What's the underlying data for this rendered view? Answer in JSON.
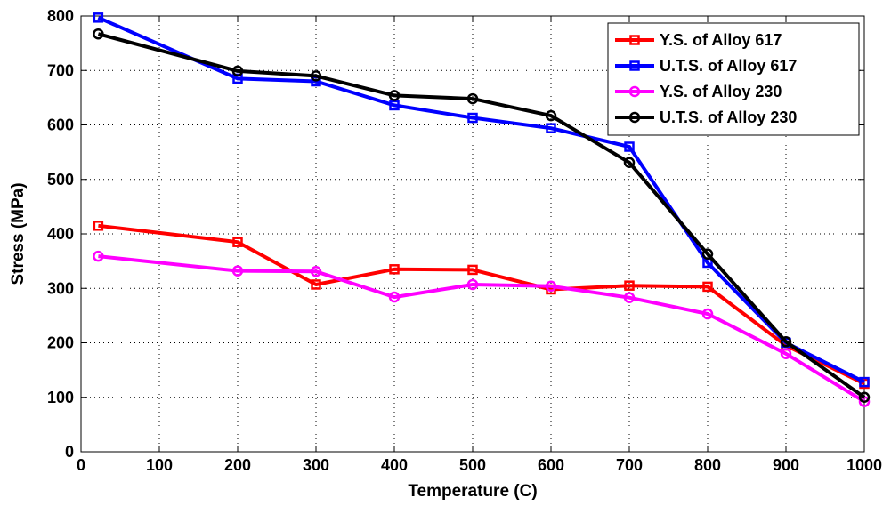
{
  "chart_data": {
    "type": "line",
    "xlabel": "Temperature (C)",
    "ylabel": "Stress (MPa)",
    "xlim": [
      0,
      1000
    ],
    "ylim": [
      0,
      800
    ],
    "x_ticks": [
      0,
      100,
      200,
      300,
      400,
      500,
      600,
      700,
      800,
      900,
      1000
    ],
    "y_ticks": [
      0,
      100,
      200,
      300,
      400,
      500,
      600,
      700,
      800
    ],
    "grid": true,
    "legend_position": "top-right",
    "series": [
      {
        "name": "Y.S. of Alloy 617",
        "color": "#ff0000",
        "marker": "square",
        "x": [
          22,
          200,
          300,
          400,
          500,
          600,
          700,
          800,
          900,
          1000
        ],
        "values": [
          415,
          385,
          307,
          335,
          334,
          298,
          305,
          303,
          195,
          125
        ]
      },
      {
        "name": "U.T.S. of Alloy 617",
        "color": "#0000ff",
        "marker": "square",
        "x": [
          22,
          200,
          300,
          400,
          500,
          600,
          700,
          800,
          900,
          1000
        ],
        "values": [
          797,
          685,
          680,
          636,
          613,
          594,
          560,
          347,
          200,
          128
        ]
      },
      {
        "name": "Y.S. of Alloy 230",
        "color": "#ff00ff",
        "marker": "circle",
        "x": [
          22,
          200,
          300,
          400,
          500,
          600,
          700,
          800,
          900,
          1000
        ],
        "values": [
          359,
          332,
          331,
          284,
          307,
          304,
          283,
          253,
          180,
          92
        ]
      },
      {
        "name": "U.T.S. of Alloy 230",
        "color": "#000000",
        "marker": "circle",
        "x": [
          22,
          200,
          300,
          400,
          500,
          600,
          700,
          800,
          900,
          1000
        ],
        "values": [
          767,
          699,
          690,
          654,
          648,
          617,
          531,
          363,
          202,
          100
        ]
      }
    ]
  }
}
